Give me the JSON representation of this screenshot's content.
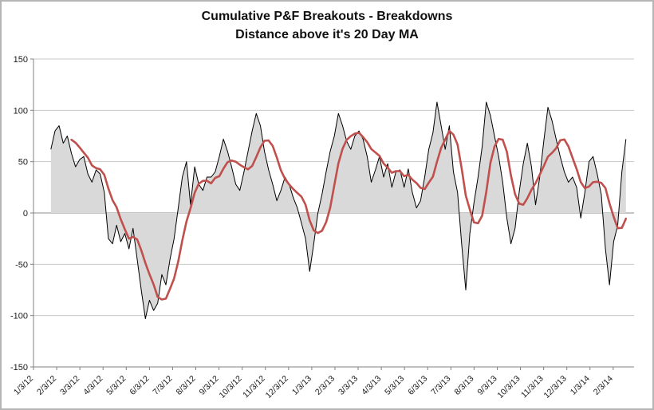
{
  "chart_data": {
    "type": "area",
    "title": "Cumulative P&F Breakouts - Breakdowns",
    "subtitle": "Distance above it's 20 Day MA",
    "xlabel": "",
    "ylabel": "",
    "ylim": [
      -150,
      150
    ],
    "y_ticks": [
      -150,
      -100,
      -50,
      0,
      50,
      100,
      150
    ],
    "xlim_months": [
      0,
      25.9
    ],
    "x_tick_labels": [
      "1/3/12",
      "2/3/12",
      "3/3/12",
      "4/3/12",
      "5/3/12",
      "6/3/12",
      "7/3/12",
      "8/3/12",
      "9/3/12",
      "10/3/12",
      "11/3/12",
      "12/3/12",
      "1/3/13",
      "2/3/13",
      "3/3/13",
      "4/3/13",
      "5/3/13",
      "6/3/13",
      "7/3/13",
      "8/3/13",
      "9/3/13",
      "10/3/13",
      "11/3/13",
      "12/3/13",
      "1/3/14",
      "2/3/14"
    ],
    "grid": "horizontal",
    "legend_position": "none",
    "colors": {
      "area_fill": "#d9d9d9",
      "area_line": "#000000",
      "ma_line": "#c0504d",
      "gridline": "#c9c9c9",
      "axis": "#808080",
      "text": "#1a1a1a"
    },
    "series": [
      {
        "name": "Cumulative P&F Breakouts - Breakdowns",
        "type": "area",
        "x_start_month": 0.75,
        "x_end_month": 25.55,
        "values": [
          62,
          80,
          85,
          68,
          75,
          58,
          45,
          52,
          55,
          38,
          30,
          42,
          38,
          20,
          -25,
          -30,
          -12,
          -28,
          -20,
          -35,
          -15,
          -45,
          -75,
          -103,
          -85,
          -95,
          -88,
          -60,
          -70,
          -45,
          -25,
          5,
          35,
          50,
          8,
          45,
          28,
          22,
          35,
          35,
          40,
          55,
          72,
          60,
          45,
          28,
          22,
          40,
          60,
          80,
          97,
          85,
          60,
          42,
          28,
          12,
          22,
          35,
          28,
          15,
          5,
          -10,
          -25,
          -57,
          -30,
          0,
          18,
          40,
          60,
          75,
          97,
          85,
          70,
          62,
          75,
          80,
          72,
          55,
          30,
          42,
          55,
          35,
          48,
          25,
          40,
          42,
          25,
          43,
          20,
          5,
          12,
          35,
          62,
          78,
          108,
          85,
          62,
          85,
          40,
          20,
          -30,
          -75,
          -20,
          10,
          35,
          65,
          108,
          95,
          75,
          55,
          30,
          -5,
          -30,
          -15,
          20,
          48,
          68,
          45,
          8,
          35,
          70,
          103,
          90,
          72,
          55,
          40,
          30,
          35,
          25,
          -5,
          20,
          50,
          55,
          38,
          18,
          -35,
          -70,
          -28,
          -12,
          40,
          72
        ]
      },
      {
        "name": "20 Day MA",
        "type": "line",
        "derived": "trailing moving average of series 0",
        "window_points": 6
      }
    ]
  }
}
